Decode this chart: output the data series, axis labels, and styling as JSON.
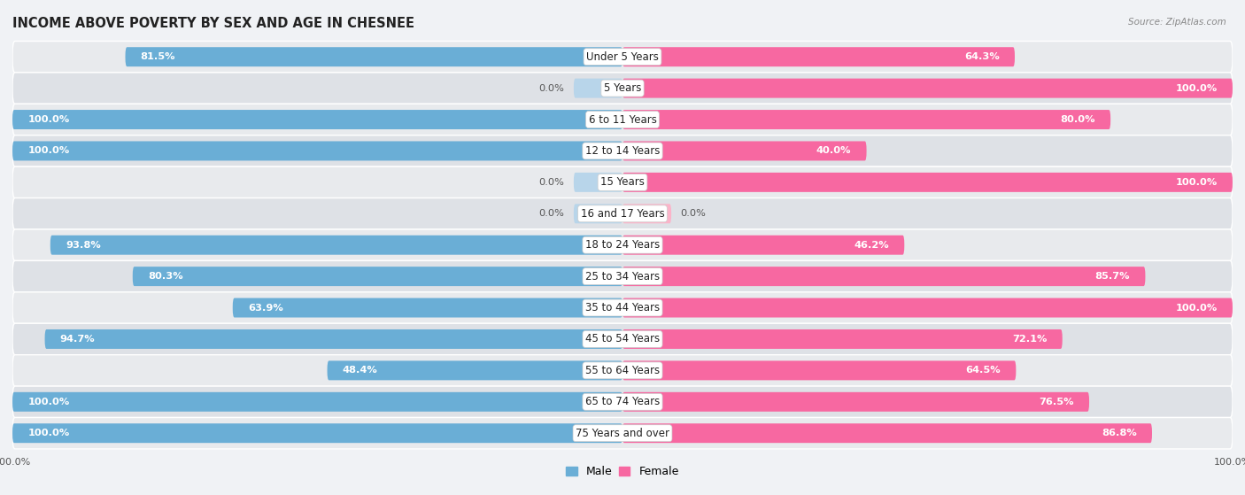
{
  "title": "INCOME ABOVE POVERTY BY SEX AND AGE IN CHESNEE",
  "source": "Source: ZipAtlas.com",
  "categories": [
    "Under 5 Years",
    "5 Years",
    "6 to 11 Years",
    "12 to 14 Years",
    "15 Years",
    "16 and 17 Years",
    "18 to 24 Years",
    "25 to 34 Years",
    "35 to 44 Years",
    "45 to 54 Years",
    "55 to 64 Years",
    "65 to 74 Years",
    "75 Years and over"
  ],
  "male_values": [
    81.5,
    0.0,
    100.0,
    100.0,
    0.0,
    0.0,
    93.8,
    80.3,
    63.9,
    94.7,
    48.4,
    100.0,
    100.0
  ],
  "female_values": [
    64.3,
    100.0,
    80.0,
    40.0,
    100.0,
    0.0,
    46.2,
    85.7,
    100.0,
    72.1,
    64.5,
    76.5,
    86.8
  ],
  "male_color": "#6aaed6",
  "male_color_light": "#b8d5ea",
  "female_color": "#f768a1",
  "female_color_light": "#fbb4c9",
  "male_label": "Male",
  "female_label": "Female",
  "row_color_odd": "#f0f2f5",
  "row_color_even": "#e4e8ed",
  "background_color": "#f0f2f5",
  "title_fontsize": 10.5,
  "label_fontsize": 8.5,
  "value_fontsize": 8.2,
  "tick_fontsize": 8
}
